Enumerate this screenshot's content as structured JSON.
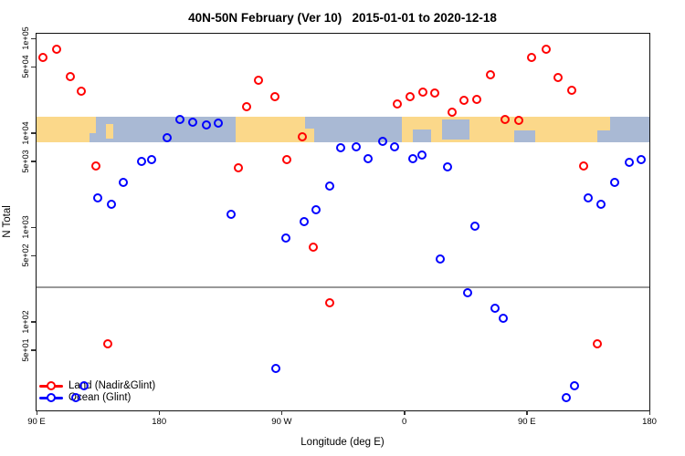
{
  "title": "40N-50N February (Ver 10)   2015-01-01 to 2020-12-18",
  "axes": {
    "x": {
      "label": "Longitude (deg E)",
      "ticks": [
        {
          "deg": 90,
          "label": "90 E"
        },
        {
          "deg": 180,
          "label": "180"
        },
        {
          "deg": 270,
          "label": "90 W"
        },
        {
          "deg": 360,
          "label": "0"
        },
        {
          "deg": 450,
          "label": "90 E"
        },
        {
          "deg": 540,
          "label": "180"
        }
      ]
    },
    "y": {
      "label": "N Total",
      "ticks": [
        {
          "value": 100000,
          "label": "1e+05"
        },
        {
          "value": 50000,
          "label": "5e+04"
        },
        {
          "value": 10000,
          "label": "1e+04"
        },
        {
          "value": 5000,
          "label": "5e+03"
        },
        {
          "value": 1000,
          "label": "1e+03"
        },
        {
          "value": 500,
          "label": "5e+02"
        },
        {
          "value": 100,
          "label": "1e+02"
        },
        {
          "value": 50,
          "label": "5e+01"
        }
      ]
    }
  },
  "legend": {
    "items": [
      {
        "label": "Land (Nadir&Glint)",
        "color": "#ff0000"
      },
      {
        "label": "Ocean (Glint)",
        "color": "#0000ff"
      }
    ]
  },
  "chart_data": {
    "type": "scatter",
    "title": "40N-50N February (Ver 10)   2015-01-01 to 2020-12-18",
    "xlabel": "Longitude (deg E)",
    "ylabel": "N Total",
    "x_axis_note": "degrees east, wrapped axis running 90E through 180, 90W, 0, 90E to 180 (90 to 540)",
    "xlim": [
      90,
      540
    ],
    "ylim": [
      12,
      112000
    ],
    "yscale": "log",
    "grid": false,
    "legend_position": "bottom-left inside plot",
    "threshold_line": {
      "value": 235,
      "color": "#999999"
    },
    "map_band": {
      "description": "world-map strip of the 40N-50N latitude band drawn across the 1e+04 level",
      "top_value": 14800,
      "bottom_value": 7900,
      "ocean_color": "#a9b9d4",
      "land_color": "#fbd88a",
      "land_segments": [
        {
          "from": 90,
          "to": 133.5
        },
        {
          "from": 141,
          "to": 146.5,
          "top": 0.3,
          "bot": 0.85
        },
        {
          "from": 236,
          "to": 288.5
        },
        {
          "from": 288.5,
          "to": 294,
          "top": 0.45,
          "bot": 1
        },
        {
          "from": 358,
          "to": 501.5
        },
        {
          "from": 501.5,
          "to": 511,
          "top": 0,
          "bot": 0.55
        }
      ],
      "water_patches": [
        {
          "from": 129,
          "to": 133.5,
          "top": 0.65,
          "bot": 1
        },
        {
          "from": 287.5,
          "to": 300.5,
          "top": 0,
          "bot": 0.45
        },
        {
          "from": 366,
          "to": 379.5,
          "top": 0.5,
          "bot": 1
        },
        {
          "from": 388,
          "to": 408,
          "top": 0.12,
          "bot": 0.9
        },
        {
          "from": 441,
          "to": 456,
          "top": 0.55,
          "bot": 1
        }
      ]
    },
    "series": [
      {
        "name": "Land (Nadir&Glint)",
        "color": "#ff0000",
        "points": [
          [
            95,
            63000
          ],
          [
            105,
            77000
          ],
          [
            115,
            39000
          ],
          [
            123,
            27500
          ],
          [
            133.5,
            4400
          ],
          [
            142,
            58
          ],
          [
            238,
            4250
          ],
          [
            244,
            18800
          ],
          [
            253,
            36000
          ],
          [
            265,
            24000
          ],
          [
            273.5,
            5200
          ],
          [
            285,
            9000
          ],
          [
            293,
            610
          ],
          [
            305,
            158
          ],
          [
            355,
            20000
          ],
          [
            364,
            24000
          ],
          [
            374,
            27000
          ],
          [
            382.5,
            26500
          ],
          [
            395,
            16500
          ],
          [
            404,
            22000
          ],
          [
            413,
            22500
          ],
          [
            423.5,
            41000
          ],
          [
            434,
            13800
          ],
          [
            444,
            13600
          ],
          [
            453.5,
            63000
          ],
          [
            464.5,
            76000
          ],
          [
            473,
            38500
          ],
          [
            483,
            28000
          ],
          [
            492,
            4400
          ],
          [
            502,
            58
          ]
        ]
      },
      {
        "name": "Ocean (Glint)",
        "color": "#0000ff",
        "points": [
          [
            118.8,
            15.5
          ],
          [
            124.9,
            21
          ],
          [
            134.9,
            2050
          ],
          [
            145,
            1750
          ],
          [
            153.7,
            3000
          ],
          [
            167.1,
            4950
          ],
          [
            174.5,
            5200
          ],
          [
            185.9,
            8800
          ],
          [
            195.3,
            13800
          ],
          [
            204.7,
            13000
          ],
          [
            214.7,
            12000
          ],
          [
            223.5,
            12600
          ],
          [
            232.8,
            1380
          ],
          [
            265.7,
            32
          ],
          [
            273.1,
            770
          ],
          [
            286.5,
            1140
          ],
          [
            295.3,
            1520
          ],
          [
            305.3,
            2700
          ],
          [
            313.3,
            6900
          ],
          [
            324.7,
            7050
          ],
          [
            333.4,
            5250
          ],
          [
            344.1,
            8100
          ],
          [
            352.9,
            7050
          ],
          [
            366.3,
            5300
          ],
          [
            373,
            5800
          ],
          [
            386.4,
            460
          ],
          [
            391.8,
            4350
          ],
          [
            406.6,
            200
          ],
          [
            411.9,
            1030
          ],
          [
            426.7,
            138
          ],
          [
            432.7,
            108
          ],
          [
            479.3,
            15.5
          ],
          [
            484.7,
            21
          ],
          [
            495,
            2050
          ],
          [
            504.4,
            1750
          ],
          [
            514.5,
            3000
          ],
          [
            525.2,
            4900
          ],
          [
            533.9,
            5200
          ]
        ]
      }
    ]
  }
}
